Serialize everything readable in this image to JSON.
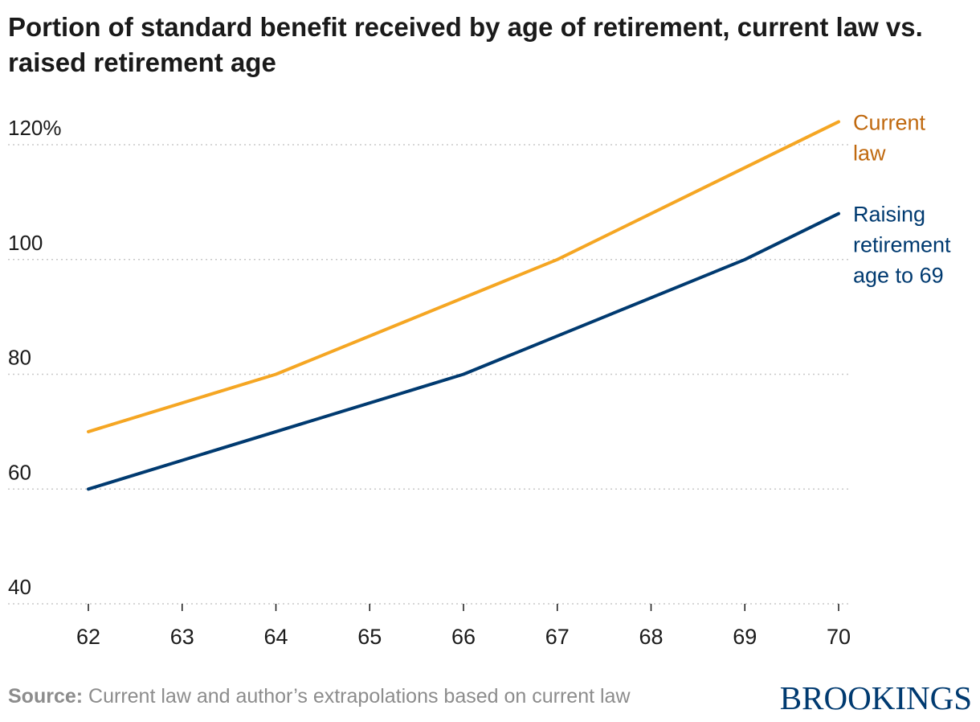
{
  "title": "Portion of standard benefit received by age of retirement, current law vs. raised retirement age",
  "source_label": "Source:",
  "source_text": "Current law and author’s extrapolations based on current law",
  "brand": "BROOKINGS",
  "chart_data": {
    "type": "line",
    "title": "Portion of standard benefit received by age of retirement, current law vs. raised retirement age",
    "x": [
      62,
      63,
      64,
      65,
      66,
      67,
      68,
      69,
      70
    ],
    "x_ticks": [
      "62",
      "63",
      "64",
      "65",
      "66",
      "67",
      "68",
      "69",
      "70"
    ],
    "y_ticks": [
      "40",
      "60",
      "80",
      "100",
      "120%"
    ],
    "y_tick_values": [
      40,
      60,
      80,
      100,
      120
    ],
    "ylim": [
      40,
      124
    ],
    "xlim": [
      62,
      70
    ],
    "grid": "horizontal dotted",
    "legend": "inline labels at line ends (right)",
    "series": [
      {
        "name": "Current law",
        "label_lines": [
          "Current",
          "law"
        ],
        "color": "#f5a623",
        "label_color": "#c0690f",
        "x": [
          62,
          64,
          67,
          70
        ],
        "values": [
          70,
          80,
          100,
          124
        ]
      },
      {
        "name": "Raising retirement age to 69",
        "label_lines": [
          "Raising",
          "retirement",
          "age to 69"
        ],
        "color": "#003a70",
        "label_color": "#003a70",
        "x": [
          62,
          66,
          69,
          70
        ],
        "values": [
          60,
          80,
          100,
          108
        ]
      }
    ]
  }
}
